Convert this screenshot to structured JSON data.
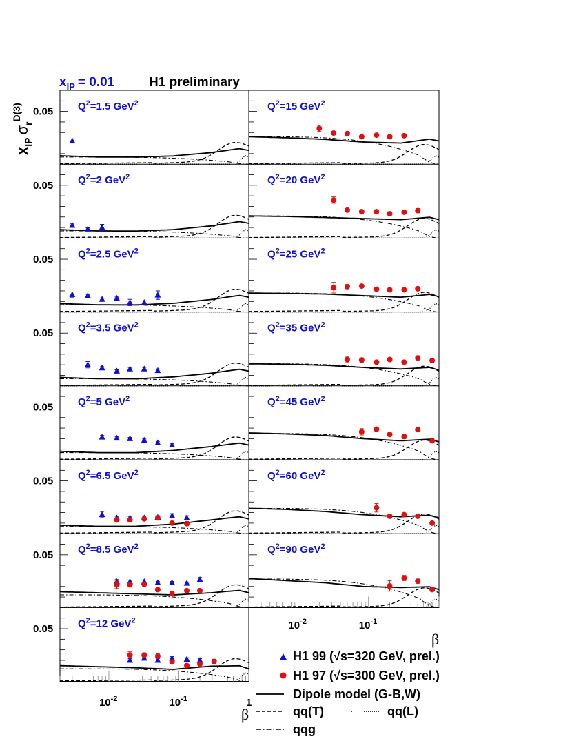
{
  "header": {
    "xip_prefix": "x",
    "xip_sub": "IP",
    "xip_value": "= 0.01",
    "experiment": "H1 preliminary"
  },
  "y_axis_title": {
    "x": "x",
    "x_sub": "IP",
    "sigma": "σ",
    "sigma_sub": "r",
    "sigma_sup": "D(3)"
  },
  "colors": {
    "h1_99": "#1010d0",
    "h1_97": "#e01010",
    "label": "#1010d0",
    "theory": "#000000"
  },
  "legend": {
    "entries": [
      {
        "key": "h1_99",
        "label": "H1 99 (√s=320 GeV, prel.)",
        "marker": "triangle"
      },
      {
        "key": "h1_97",
        "label": "H1 97 (√s=300 GeV, prel.)",
        "marker": "circle"
      },
      {
        "key": "dipole",
        "label": "Dipole model (G-B,W)",
        "line": "solid"
      },
      {
        "key": "qqT",
        "label": "qq(T)",
        "line": "dashed"
      },
      {
        "key": "qqL",
        "label": "qq(L)",
        "line": "dotted"
      },
      {
        "key": "qqg",
        "label": "qqg",
        "line": "dashdot"
      }
    ]
  },
  "axis_labels": {
    "beta_left": "β",
    "beta_right": "β"
  },
  "chart_data": {
    "type": "scatter",
    "x_scale": "log",
    "xlim": [
      0.002,
      1
    ],
    "ylim": [
      0,
      0.07
    ],
    "y_tick_label": "0.05",
    "x_tick_labels": [
      {
        "base": "10",
        "exp": "-2",
        "value": 0.01
      },
      {
        "base": "10",
        "exp": "-1",
        "value": 0.1
      },
      {
        "base": "1",
        "exp": "",
        "value": 1
      }
    ],
    "x_tick_labels_right": [
      {
        "base": "10",
        "exp": "-2",
        "value": 0.01
      },
      {
        "base": "10",
        "exp": "-1",
        "value": 0.1
      }
    ],
    "panels": [
      {
        "id": "q1_5",
        "column": 0,
        "row": 0,
        "label_main": "Q",
        "label_rest": "=1.5 GeV",
        "h1_99": [
          [
            0.003,
            0.022,
            0.002
          ]
        ],
        "h1_97": [],
        "dipole": [
          0.008,
          0.0068,
          0.0067,
          0.0078,
          0.011,
          0.016
        ],
        "qqT": [
          0.007,
          0.015
        ],
        "qqL": [
          0.0,
          0.008
        ],
        "qqg": [
          0.0068,
          0.001
        ]
      },
      {
        "id": "q2",
        "column": 0,
        "row": 1,
        "label_main": "Q",
        "label_rest": "=2 GeV",
        "h1_99": [
          [
            0.003,
            0.012,
            0.0015
          ],
          [
            0.005,
            0.0085,
            0.0012
          ],
          [
            0.008,
            0.01,
            0.003
          ]
        ],
        "h1_97": [],
        "dipole": [
          0.008,
          0.0068,
          0.0067,
          0.008,
          0.0115,
          0.017
        ],
        "qqT": [
          0.007,
          0.016
        ],
        "qqL": [
          0.0,
          0.008
        ],
        "qqg": [
          0.0068,
          0.001
        ]
      },
      {
        "id": "q2_5",
        "column": 0,
        "row": 2,
        "label_main": "Q",
        "label_rest": "=2.5 GeV",
        "h1_99": [
          [
            0.003,
            0.0165,
            0.0025
          ],
          [
            0.005,
            0.0155,
            0.0012
          ],
          [
            0.008,
            0.012,
            0.0012
          ],
          [
            0.013,
            0.013,
            0.0012
          ],
          [
            0.02,
            0.009,
            0.003
          ],
          [
            0.032,
            0.009,
            0.0015
          ],
          [
            0.05,
            0.016,
            0.004
          ]
        ],
        "h1_97": [],
        "dipole": [
          0.008,
          0.0068,
          0.0067,
          0.0082,
          0.0118,
          0.017
        ],
        "qqT": [
          0.007,
          0.016
        ],
        "qqL": [
          0.0,
          0.008
        ],
        "qqg": [
          0.0068,
          0.001
        ]
      },
      {
        "id": "q3_5",
        "column": 0,
        "row": 3,
        "label_main": "Q",
        "label_rest": "=3.5 GeV",
        "h1_99": [
          [
            0.005,
            0.02,
            0.003
          ],
          [
            0.008,
            0.017,
            0.0012
          ],
          [
            0.013,
            0.014,
            0.0012
          ],
          [
            0.02,
            0.016,
            0.0015
          ],
          [
            0.032,
            0.016,
            0.0015
          ],
          [
            0.05,
            0.0145,
            0.0015
          ]
        ],
        "h1_97": [],
        "dipole": [
          0.008,
          0.0068,
          0.0067,
          0.0085,
          0.012,
          0.017
        ],
        "qqT": [
          0.007,
          0.016
        ],
        "qqL": [
          0.0,
          0.008
        ],
        "qqg": [
          0.0068,
          0.001
        ]
      },
      {
        "id": "q5",
        "column": 0,
        "row": 4,
        "label_main": "Q",
        "label_rest": "=5 GeV",
        "h1_99": [
          [
            0.008,
            0.0215,
            0.0015
          ],
          [
            0.013,
            0.0205,
            0.0012
          ],
          [
            0.02,
            0.02,
            0.0012
          ],
          [
            0.032,
            0.0185,
            0.0012
          ],
          [
            0.05,
            0.016,
            0.0012
          ],
          [
            0.08,
            0.014,
            0.0015
          ]
        ],
        "h1_97": [],
        "dipole": [
          0.008,
          0.0068,
          0.0068,
          0.0088,
          0.0125,
          0.017
        ],
        "qqT": [
          0.007,
          0.016
        ],
        "qqL": [
          0.0,
          0.008
        ],
        "qqg": [
          0.0068,
          0.001
        ]
      },
      {
        "id": "q6_5",
        "column": 0,
        "row": 5,
        "label_main": "Q",
        "label_rest": "=6.5 GeV",
        "h1_99": [
          [
            0.008,
            0.018,
            0.003
          ],
          [
            0.013,
            0.015,
            0.0015
          ],
          [
            0.02,
            0.015,
            0.0015
          ],
          [
            0.032,
            0.015,
            0.0015
          ],
          [
            0.05,
            0.0155,
            0.0015
          ],
          [
            0.08,
            0.017,
            0.002
          ],
          [
            0.13,
            0.015,
            0.002
          ]
        ],
        "h1_97": [
          [
            0.013,
            0.013,
            0.0015
          ],
          [
            0.02,
            0.013,
            0.0012
          ],
          [
            0.032,
            0.014,
            0.0012
          ],
          [
            0.05,
            0.015,
            0.0015
          ],
          [
            0.08,
            0.01,
            0.0012
          ],
          [
            0.13,
            0.0095,
            0.002
          ]
        ],
        "dipole": [
          0.008,
          0.007,
          0.007,
          0.009,
          0.013,
          0.017
        ],
        "qqT": [
          0.007,
          0.016
        ],
        "qqL": [
          0.0,
          0.008
        ],
        "qqg": [
          0.0068,
          0.001
        ]
      },
      {
        "id": "q8_5",
        "column": 0,
        "row": 6,
        "label_main": "Q",
        "label_rest": "=8.5 GeV",
        "h1_99": [
          [
            0.013,
            0.0245,
            0.002
          ],
          [
            0.02,
            0.0245,
            0.0015
          ],
          [
            0.032,
            0.0245,
            0.0015
          ],
          [
            0.05,
            0.0235,
            0.0012
          ],
          [
            0.08,
            0.0235,
            0.0012
          ],
          [
            0.13,
            0.023,
            0.0012
          ],
          [
            0.2,
            0.0265,
            0.002
          ]
        ],
        "h1_97": [
          [
            0.013,
            0.0215,
            0.0035
          ],
          [
            0.02,
            0.0215,
            0.002
          ],
          [
            0.032,
            0.022,
            0.0015
          ],
          [
            0.05,
            0.017,
            0.0012
          ],
          [
            0.08,
            0.0135,
            0.0012
          ],
          [
            0.13,
            0.016,
            0.0012
          ],
          [
            0.2,
            0.016,
            0.0012
          ]
        ],
        "dipole": [
          0.015,
          0.014,
          0.013,
          0.012,
          0.014,
          0.017
        ],
        "qqT": [
          0.007,
          0.016
        ],
        "qqL": [
          0.0,
          0.008
        ],
        "qqg": [
          0.012,
          0.001
        ]
      },
      {
        "id": "q12",
        "column": 0,
        "row": 7,
        "label_main": "Q",
        "label_rest": "=12 GeV",
        "h1_99": [
          [
            0.02,
            0.02,
            0.0015
          ],
          [
            0.032,
            0.022,
            0.0015
          ],
          [
            0.05,
            0.02,
            0.0015
          ],
          [
            0.08,
            0.022,
            0.0015
          ],
          [
            0.13,
            0.021,
            0.0015
          ],
          [
            0.2,
            0.02,
            0.0015
          ]
        ],
        "h1_97": [
          [
            0.02,
            0.025,
            0.003
          ],
          [
            0.032,
            0.025,
            0.002
          ],
          [
            0.05,
            0.024,
            0.002
          ],
          [
            0.08,
            0.0185,
            0.0015
          ],
          [
            0.13,
            0.015,
            0.0012
          ],
          [
            0.2,
            0.0165,
            0.0012
          ],
          [
            0.32,
            0.019,
            0.002
          ]
        ],
        "dipole": [
          0.015,
          0.014,
          0.013,
          0.0115,
          0.0145,
          0.015
        ],
        "qqT": [
          0.007,
          0.016
        ],
        "qqL": [
          0.0,
          0.008
        ],
        "qqg": [
          0.012,
          0.001
        ]
      },
      {
        "id": "q15",
        "column": 1,
        "row": 0,
        "label_main": "Q",
        "label_rest": "=15 GeV",
        "h1_99": [],
        "h1_97": [
          [
            0.02,
            0.034,
            0.003
          ],
          [
            0.032,
            0.0295,
            0.0015
          ],
          [
            0.05,
            0.029,
            0.0015
          ],
          [
            0.08,
            0.026,
            0.0012
          ],
          [
            0.13,
            0.0275,
            0.0012
          ],
          [
            0.2,
            0.026,
            0.0012
          ],
          [
            0.32,
            0.027,
            0.0012
          ]
        ],
        "dipole": [
          0.026,
          0.025,
          0.0235,
          0.021,
          0.02,
          0.025
        ],
        "qqT": [
          0.003,
          0.016
        ],
        "qqL": [
          0.0,
          0.008
        ],
        "qqg": [
          0.026,
          0.001
        ]
      },
      {
        "id": "q20",
        "column": 1,
        "row": 1,
        "label_main": "Q",
        "label_rest": "=20 GeV",
        "h1_99": [],
        "h1_97": [
          [
            0.032,
            0.036,
            0.003
          ],
          [
            0.05,
            0.0265,
            0.0015
          ],
          [
            0.08,
            0.025,
            0.0015
          ],
          [
            0.13,
            0.025,
            0.0012
          ],
          [
            0.2,
            0.023,
            0.002
          ],
          [
            0.32,
            0.0245,
            0.0015
          ],
          [
            0.5,
            0.026,
            0.002
          ]
        ],
        "dipole": [
          0.021,
          0.0205,
          0.0195,
          0.0185,
          0.0175,
          0.0205
        ],
        "qqT": [
          0.003,
          0.016
        ],
        "qqL": [
          0.0,
          0.008
        ],
        "qqg": [
          0.021,
          0.001
        ]
      },
      {
        "id": "q25",
        "column": 1,
        "row": 2,
        "label_main": "Q",
        "label_rest": "=25 GeV",
        "h1_99": [],
        "h1_97": [
          [
            0.032,
            0.023,
            0.005
          ],
          [
            0.05,
            0.024,
            0.002
          ],
          [
            0.08,
            0.0245,
            0.0015
          ],
          [
            0.13,
            0.0215,
            0.0015
          ],
          [
            0.2,
            0.021,
            0.0015
          ],
          [
            0.32,
            0.021,
            0.0015
          ],
          [
            0.5,
            0.022,
            0.0015
          ]
        ],
        "dipole": [
          0.018,
          0.0175,
          0.017,
          0.0155,
          0.014,
          0.0175
        ],
        "qqT": [
          0.003,
          0.016
        ],
        "qqL": [
          0.0,
          0.008
        ],
        "qqg": [
          0.018,
          0.001
        ]
      },
      {
        "id": "q35",
        "column": 1,
        "row": 3,
        "label_main": "Q",
        "label_rest": "=35 GeV",
        "h1_99": [],
        "h1_97": [
          [
            0.05,
            0.025,
            0.003
          ],
          [
            0.08,
            0.0245,
            0.002
          ],
          [
            0.13,
            0.0225,
            0.0015
          ],
          [
            0.2,
            0.025,
            0.0015
          ],
          [
            0.32,
            0.0225,
            0.0015
          ],
          [
            0.5,
            0.0265,
            0.002
          ],
          [
            0.8,
            0.024,
            0.002
          ]
        ],
        "dipole": [
          0.021,
          0.0205,
          0.0195,
          0.0175,
          0.016,
          0.018
        ],
        "qqT": [
          0.003,
          0.016
        ],
        "qqL": [
          0.0,
          0.008
        ],
        "qqg": [
          0.021,
          0.001
        ]
      },
      {
        "id": "q45",
        "column": 1,
        "row": 4,
        "label_main": "Q",
        "label_rest": "=45 GeV",
        "h1_99": [],
        "h1_97": [
          [
            0.08,
            0.0265,
            0.003
          ],
          [
            0.13,
            0.029,
            0.002
          ],
          [
            0.2,
            0.024,
            0.0015
          ],
          [
            0.32,
            0.022,
            0.002
          ],
          [
            0.5,
            0.0285,
            0.002
          ],
          [
            0.8,
            0.018,
            0.002
          ]
        ],
        "dipole": [
          0.0255,
          0.0245,
          0.023,
          0.02,
          0.018,
          0.02
        ],
        "qqT": [
          0.003,
          0.016
        ],
        "qqL": [
          0.0,
          0.008
        ],
        "qqg": [
          0.025,
          0.001
        ]
      },
      {
        "id": "q60",
        "column": 1,
        "row": 5,
        "label_main": "Q",
        "label_rest": "=60 GeV",
        "h1_99": [],
        "h1_97": [
          [
            0.13,
            0.0245,
            0.004
          ],
          [
            0.2,
            0.0165,
            0.0015
          ],
          [
            0.32,
            0.018,
            0.0015
          ],
          [
            0.5,
            0.0165,
            0.0015
          ],
          [
            0.8,
            0.01,
            0.0012
          ]
        ],
        "dipole": [
          0.024,
          0.023,
          0.021,
          0.018,
          0.016,
          0.018
        ],
        "qqT": [
          0.003,
          0.016
        ],
        "qqL": [
          0.0,
          0.008
        ],
        "qqg": [
          0.024,
          0.001
        ]
      },
      {
        "id": "q90",
        "column": 1,
        "row": 6,
        "label_main": "Q",
        "label_rest": "=90 GeV",
        "h1_99": [],
        "h1_97": [
          [
            0.2,
            0.0205,
            0.005
          ],
          [
            0.32,
            0.028,
            0.0025
          ],
          [
            0.5,
            0.025,
            0.002
          ],
          [
            0.8,
            0.017,
            0.0015
          ]
        ],
        "dipole": [
          0.0275,
          0.0255,
          0.0235,
          0.02,
          0.019,
          0.02
        ],
        "qqT": [
          0.003,
          0.016
        ],
        "qqL": [
          0.0,
          0.008
        ],
        "qqg": [
          0.027,
          0.001
        ]
      }
    ]
  }
}
